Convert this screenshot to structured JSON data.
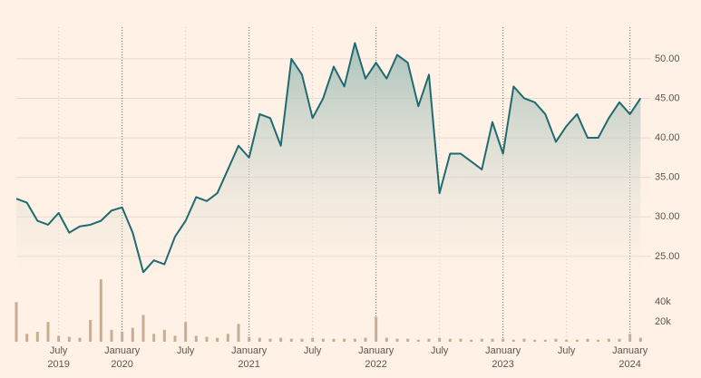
{
  "chart_data": [
    {
      "type": "line",
      "color": "#1f6b70",
      "fill": "#9fbdb6",
      "x": [
        "2019-03",
        "2019-04",
        "2019-05",
        "2019-06",
        "2019-07",
        "2019-08",
        "2019-09",
        "2019-10",
        "2019-11",
        "2019-12",
        "2020-01",
        "2020-02",
        "2020-03",
        "2020-04",
        "2020-05",
        "2020-06",
        "2020-07",
        "2020-08",
        "2020-09",
        "2020-10",
        "2020-11",
        "2020-12",
        "2021-01",
        "2021-02",
        "2021-03",
        "2021-04",
        "2021-05",
        "2021-06",
        "2021-07",
        "2021-08",
        "2021-09",
        "2021-10",
        "2021-11",
        "2021-12",
        "2022-01",
        "2022-02",
        "2022-03",
        "2022-04",
        "2022-05",
        "2022-06",
        "2022-07",
        "2022-08",
        "2022-09",
        "2022-10",
        "2022-11",
        "2022-12",
        "2023-01",
        "2023-02",
        "2023-03",
        "2023-04",
        "2023-05",
        "2023-06",
        "2023-07",
        "2023-08",
        "2023-09",
        "2023-10",
        "2023-11",
        "2023-12",
        "2024-01",
        "2024-02"
      ],
      "values": [
        32.3,
        31.8,
        29.5,
        29.0,
        30.5,
        28.0,
        28.8,
        29.0,
        29.5,
        30.8,
        31.2,
        28.0,
        23.0,
        24.5,
        24.0,
        27.5,
        29.5,
        32.5,
        32.0,
        33.0,
        36.0,
        39.0,
        37.5,
        43.0,
        42.5,
        39.0,
        50.0,
        48.0,
        42.5,
        45.0,
        49.0,
        46.5,
        52.0,
        47.5,
        49.5,
        47.5,
        50.5,
        49.5,
        44.0,
        48.0,
        33.0,
        38.0,
        38.0,
        37.0,
        36.0,
        42.0,
        38.0,
        46.5,
        45.0,
        44.5,
        43.0,
        39.5,
        41.5,
        43.0,
        40.0,
        40.0,
        42.5,
        44.5,
        43.0,
        45.0
      ],
      "xlim": [
        "2019-03",
        "2024-03"
      ],
      "ylim": [
        22,
        54
      ],
      "yticks": [
        {
          "value": 25,
          "label": "25.00"
        },
        {
          "value": 30,
          "label": "30.00"
        },
        {
          "value": 35,
          "label": "35.00"
        },
        {
          "value": 40,
          "label": "40.00"
        },
        {
          "value": 45,
          "label": "45.00"
        },
        {
          "value": 50,
          "label": "50.00"
        }
      ],
      "grid": true
    },
    {
      "type": "bar",
      "color": "#c8ad93",
      "x": [
        "2019-03",
        "2019-04",
        "2019-05",
        "2019-06",
        "2019-07",
        "2019-08",
        "2019-09",
        "2019-10",
        "2019-11",
        "2019-12",
        "2020-01",
        "2020-02",
        "2020-03",
        "2020-04",
        "2020-05",
        "2020-06",
        "2020-07",
        "2020-08",
        "2020-09",
        "2020-10",
        "2020-11",
        "2020-12",
        "2021-01",
        "2021-02",
        "2021-03",
        "2021-04",
        "2021-05",
        "2021-06",
        "2021-07",
        "2021-08",
        "2021-09",
        "2021-10",
        "2021-11",
        "2021-12",
        "2022-01",
        "2022-02",
        "2022-03",
        "2022-04",
        "2022-05",
        "2022-06",
        "2022-07",
        "2022-08",
        "2022-09",
        "2022-10",
        "2022-11",
        "2022-12",
        "2023-01",
        "2023-02",
        "2023-03",
        "2023-04",
        "2023-05",
        "2023-06",
        "2023-07",
        "2023-08",
        "2023-09",
        "2023-10",
        "2023-11",
        "2023-12",
        "2024-01",
        "2024-02"
      ],
      "values": [
        40000,
        8000,
        10000,
        20000,
        6000,
        5000,
        4000,
        22000,
        63000,
        12000,
        10000,
        14000,
        27000,
        8000,
        12000,
        6000,
        20000,
        6000,
        5000,
        4000,
        8000,
        18000,
        5000,
        4000,
        3000,
        4000,
        3000,
        3000,
        4000,
        3000,
        3000,
        3000,
        3000,
        4000,
        25000,
        4000,
        3000,
        3000,
        2000,
        3000,
        4000,
        3000,
        3000,
        2000,
        3000,
        3000,
        3000,
        2000,
        3000,
        2000,
        2000,
        3000,
        2000,
        2000,
        3000,
        2000,
        3000,
        3000,
        8000,
        4000
      ],
      "xlim": [
        "2019-03",
        "2024-03"
      ],
      "ylim": [
        0,
        64000
      ],
      "yticks": [
        {
          "value": 20000,
          "label": "20k"
        },
        {
          "value": 40000,
          "label": "40k"
        }
      ],
      "xticks": [
        {
          "value": "2019-07",
          "label": "July"
        },
        {
          "value": "2020-01",
          "label": "January"
        },
        {
          "value": "2020-07",
          "label": "July"
        },
        {
          "value": "2021-01",
          "label": "January"
        },
        {
          "value": "2021-07",
          "label": "July"
        },
        {
          "value": "2022-01",
          "label": "January"
        },
        {
          "value": "2022-07",
          "label": "July"
        },
        {
          "value": "2023-01",
          "label": "January"
        },
        {
          "value": "2023-07",
          "label": "July"
        },
        {
          "value": "2024-01",
          "label": "January"
        }
      ],
      "x_year_labels": [
        {
          "value": "2019-07",
          "label": "2019"
        },
        {
          "value": "2020-01",
          "label": "2020"
        },
        {
          "value": "2021-01",
          "label": "2021"
        },
        {
          "value": "2022-01",
          "label": "2022"
        },
        {
          "value": "2023-01",
          "label": "2023"
        },
        {
          "value": "2024-01",
          "label": "2024"
        }
      ]
    }
  ]
}
